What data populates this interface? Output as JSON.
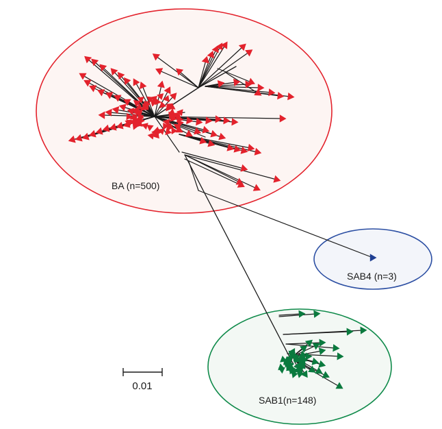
{
  "clusters": {
    "ba": {
      "label": "BA (n=500)",
      "color": "#e3222c",
      "fill": "#fdf5f3"
    },
    "sab4": {
      "label": "SAB4 (n=3)",
      "color": "#2c4fa3",
      "fill": "#f3f5fa"
    },
    "sab1": {
      "label": "SAB1(n=148)",
      "color": "#0f8a4a",
      "fill": "#f3f8f4"
    }
  },
  "scale_bar": {
    "label": "0.01"
  },
  "colors": {
    "branch": "#1a1a1a",
    "ba_tip": "#e3222c",
    "sab4_tip": "#1f3f93",
    "sab1_tip": "#0a7a3e"
  }
}
